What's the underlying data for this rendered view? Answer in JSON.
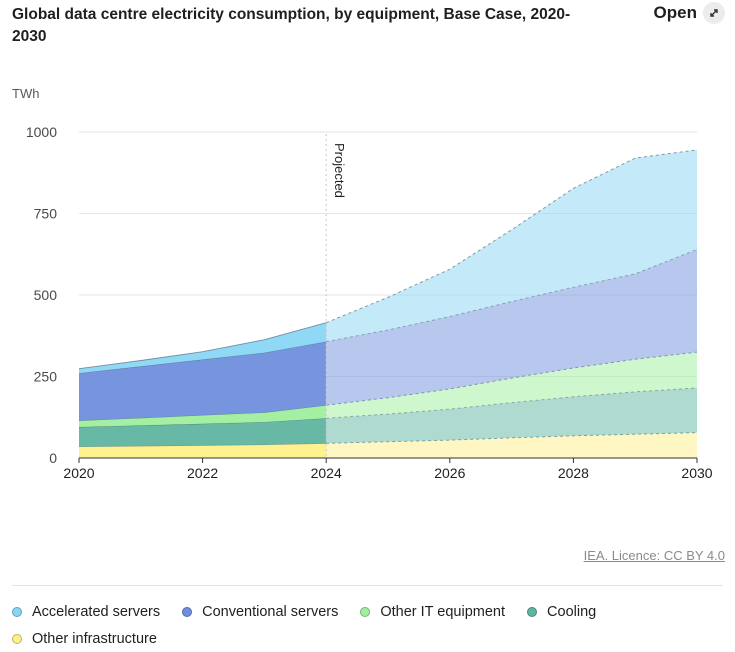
{
  "header": {
    "title": "Global data centre electricity consumption, by equipment, Base Case, 2020-2030",
    "open_label": "Open"
  },
  "source": "IEA. Licence: CC BY 4.0",
  "chart_data": {
    "type": "area",
    "stacked": true,
    "title": "Global data centre electricity consumption, by equipment, Base Case, 2020-2030",
    "ylabel": "TWh",
    "xlabel": "",
    "x": [
      2020,
      2021,
      2022,
      2023,
      2024,
      2025,
      2026,
      2027,
      2028,
      2029,
      2030
    ],
    "xticks": [
      "2020",
      "2022",
      "2024",
      "2026",
      "2028",
      "2030"
    ],
    "yticks": [
      "0",
      "250",
      "500",
      "750",
      "1000"
    ],
    "ylim": [
      0,
      1000
    ],
    "projected_from": 2024,
    "projected_label": "Projected",
    "series": [
      {
        "name": "Other infrastructure",
        "color": "#fdf08a",
        "values": [
          35,
          37,
          39,
          41,
          45,
          50,
          55,
          62,
          68,
          73,
          78
        ]
      },
      {
        "name": "Cooling",
        "color": "#5fb5a0",
        "values": [
          60,
          63,
          66,
          69,
          77,
          85,
          95,
          108,
          120,
          130,
          137
        ]
      },
      {
        "name": "Other IT equipment",
        "color": "#9fef9e",
        "values": [
          20,
          23,
          27,
          30,
          40,
          50,
          62,
          75,
          88,
          100,
          110
        ]
      },
      {
        "name": "Conventional servers",
        "color": "#6f8fdc",
        "values": [
          145,
          158,
          170,
          183,
          195,
          208,
          222,
          235,
          248,
          262,
          315
        ]
      },
      {
        "name": "Accelerated servers",
        "color": "#89d6f5",
        "values": [
          14,
          18,
          24,
          40,
          58,
          100,
          145,
          220,
          303,
          355,
          305
        ]
      }
    ],
    "legend": [
      "Accelerated servers",
      "Conventional servers",
      "Other IT equipment",
      "Cooling",
      "Other infrastructure"
    ]
  }
}
